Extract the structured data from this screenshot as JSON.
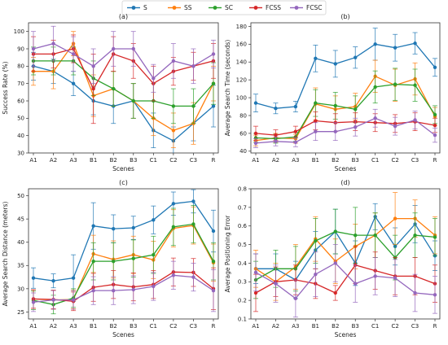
{
  "legend": {
    "placement": "top-center",
    "entries": [
      {
        "name": "S",
        "color": "#1f77b4"
      },
      {
        "name": "SS",
        "color": "#ff7f0e"
      },
      {
        "name": "SC",
        "color": "#2ca02c"
      },
      {
        "name": "FCSS",
        "color": "#d62728"
      },
      {
        "name": "FCSC",
        "color": "#9467bd"
      }
    ]
  },
  "chart_data": [
    {
      "id": "a",
      "title": "(a)",
      "type": "line",
      "xlabel": "Scenes",
      "ylabel": "Success Rate (%)",
      "categories": [
        "A1",
        "A2",
        "A3",
        "B1",
        "B2",
        "B3",
        "C1",
        "C2",
        "C3",
        "R"
      ],
      "ylim": [
        30,
        105
      ],
      "yticks": [
        30,
        40,
        50,
        60,
        70,
        80,
        90,
        100
      ],
      "grid": false,
      "series": [
        {
          "name": "S",
          "color": "#1f77b4",
          "values": [
            80,
            77,
            70,
            60,
            57,
            60,
            43,
            37,
            47,
            57
          ],
          "err": [
            8,
            7,
            7,
            8,
            10,
            10,
            10,
            8,
            10,
            12
          ]
        },
        {
          "name": "SS",
          "color": "#ff7f0e",
          "values": [
            77,
            77,
            93,
            63,
            67,
            60,
            50,
            43,
            47,
            70
          ],
          "err": [
            8,
            10,
            7,
            12,
            10,
            10,
            10,
            10,
            12,
            10
          ]
        },
        {
          "name": "SC",
          "color": "#2ca02c",
          "values": [
            83,
            83,
            83,
            73,
            67,
            60,
            60,
            57,
            57,
            70
          ],
          "err": [
            8,
            8,
            8,
            10,
            10,
            10,
            10,
            10,
            10,
            12
          ]
        },
        {
          "name": "FCSS",
          "color": "#d62728",
          "values": [
            87,
            87,
            90,
            67,
            87,
            83,
            70,
            77,
            80,
            83
          ],
          "err": [
            10,
            8,
            8,
            20,
            10,
            10,
            10,
            8,
            8,
            10
          ]
        },
        {
          "name": "FCSC",
          "color": "#9467bd",
          "values": [
            90,
            93,
            87,
            80,
            90,
            90,
            73,
            83,
            80,
            87
          ],
          "err": [
            10,
            10,
            10,
            10,
            10,
            10,
            8,
            10,
            10,
            8
          ]
        }
      ]
    },
    {
      "id": "b",
      "title": "(b)",
      "type": "line",
      "xlabel": "Scenes",
      "ylabel": "Average Search Time (seconds)",
      "categories": [
        "A1",
        "A2",
        "A3",
        "B1",
        "B2",
        "B3",
        "C1",
        "C2",
        "C3",
        "R"
      ],
      "ylim": [
        38,
        184
      ],
      "yticks": [
        40,
        60,
        80,
        100,
        120,
        140,
        160,
        180
      ],
      "grid": false,
      "series": [
        {
          "name": "S",
          "color": "#1f77b4",
          "values": [
            94,
            88,
            90,
            144,
            138,
            145,
            160,
            156,
            161,
            134
          ],
          "err": [
            10,
            6,
            6,
            15,
            15,
            12,
            18,
            15,
            12,
            10
          ]
        },
        {
          "name": "SS",
          "color": "#ff7f0e",
          "values": [
            52,
            55,
            54,
            93,
            87,
            90,
            124,
            114,
            121,
            79
          ],
          "err": [
            6,
            5,
            5,
            18,
            15,
            15,
            18,
            18,
            18,
            10
          ]
        },
        {
          "name": "SC",
          "color": "#2ca02c",
          "values": [
            55,
            54,
            56,
            94,
            91,
            87,
            112,
            115,
            114,
            81
          ],
          "err": [
            5,
            5,
            5,
            15,
            15,
            15,
            18,
            18,
            18,
            10
          ]
        },
        {
          "name": "FCSS",
          "color": "#d62728",
          "values": [
            60,
            58,
            62,
            74,
            72,
            73,
            72,
            71,
            73,
            69
          ],
          "err": [
            8,
            6,
            6,
            10,
            10,
            10,
            10,
            10,
            10,
            8
          ]
        },
        {
          "name": "FCSC",
          "color": "#9467bd",
          "values": [
            49,
            51,
            50,
            62,
            62,
            67,
            77,
            68,
            75,
            58
          ],
          "err": [
            5,
            5,
            5,
            10,
            10,
            10,
            10,
            10,
            10,
            8
          ]
        }
      ]
    },
    {
      "id": "c",
      "title": "(c)",
      "type": "line",
      "xlabel": "Scenes",
      "ylabel": "Average Search Distance (meters)",
      "categories": [
        "A1",
        "A2",
        "A3",
        "B1",
        "B2",
        "B3",
        "C1",
        "C2",
        "C3",
        "R"
      ],
      "ylim": [
        23.5,
        51.5
      ],
      "yticks": [
        25,
        30,
        35,
        40,
        45,
        50
      ],
      "grid": false,
      "series": [
        {
          "name": "S",
          "color": "#1f77b4",
          "values": [
            32.3,
            31.7,
            32.3,
            43.5,
            42.9,
            43.1,
            44.8,
            48.3,
            48.8,
            42.4
          ],
          "err": [
            2.2,
            1.5,
            5,
            5,
            3,
            2.5,
            3,
            2.5,
            2.5,
            4.5
          ]
        },
        {
          "name": "SS",
          "color": "#ff7f0e",
          "values": [
            27.8,
            27.6,
            27.7,
            37.5,
            36.3,
            37.3,
            36.2,
            43.0,
            43.6,
            35.6
          ],
          "err": [
            2,
            2,
            2,
            4,
            4,
            4,
            4,
            4,
            4,
            4
          ]
        },
        {
          "name": "SC",
          "color": "#2ca02c",
          "values": [
            27.5,
            26.6,
            28.0,
            35.9,
            35.9,
            36.5,
            37.3,
            43.3,
            43.9,
            35.9
          ],
          "err": [
            2,
            2,
            2,
            4,
            4,
            4,
            4,
            4,
            4,
            4
          ]
        },
        {
          "name": "FCSS",
          "color": "#d62728",
          "values": [
            27.8,
            27.7,
            27.3,
            30.3,
            30.9,
            30.4,
            30.9,
            33.6,
            33.5,
            30.0
          ],
          "err": [
            2,
            2,
            2,
            3,
            3,
            3,
            3,
            3,
            3,
            4.5
          ]
        },
        {
          "name": "FCSC",
          "color": "#9467bd",
          "values": [
            27.1,
            27.6,
            27.6,
            29.6,
            29.6,
            29.8,
            30.5,
            32.9,
            32.5,
            29.6
          ],
          "err": [
            2,
            2,
            2,
            3,
            3,
            3,
            3,
            3,
            3,
            4.5
          ]
        }
      ]
    },
    {
      "id": "d",
      "title": "(d)",
      "type": "line",
      "xlabel": "Scenes",
      "ylabel": "Average Positioning Error",
      "categories": [
        "A1",
        "A2",
        "A3",
        "B1",
        "B2",
        "B3",
        "C1",
        "C2",
        "C3",
        "R"
      ],
      "ylim": [
        0.1,
        0.8
      ],
      "yticks": [
        0.1,
        0.2,
        0.3,
        0.4,
        0.5,
        0.6,
        0.7,
        0.8
      ],
      "grid": false,
      "series": [
        {
          "name": "S",
          "color": "#1f77b4",
          "values": [
            0.37,
            0.37,
            0.31,
            0.47,
            0.57,
            0.4,
            0.65,
            0.49,
            0.61,
            0.44
          ],
          "err": [
            0.08,
            0.08,
            0.1,
            0.1,
            0.12,
            0.12,
            0.07,
            0.1,
            0.1,
            0.08
          ]
        },
        {
          "name": "SS",
          "color": "#ff7f0e",
          "values": [
            0.37,
            0.3,
            0.38,
            0.53,
            0.41,
            0.49,
            0.55,
            0.64,
            0.64,
            0.55
          ],
          "err": [
            0.1,
            0.1,
            0.12,
            0.12,
            0.12,
            0.12,
            0.12,
            0.14,
            0.1,
            0.1
          ]
        },
        {
          "name": "SC",
          "color": "#2ca02c",
          "values": [
            0.31,
            0.37,
            0.37,
            0.52,
            0.57,
            0.55,
            0.55,
            0.43,
            0.55,
            0.54
          ],
          "err": [
            0.1,
            0.1,
            0.12,
            0.12,
            0.12,
            0.15,
            0.12,
            0.12,
            0.12,
            0.1
          ]
        },
        {
          "name": "FCSS",
          "color": "#d62728",
          "values": [
            0.24,
            0.3,
            0.31,
            0.29,
            0.24,
            0.39,
            0.36,
            0.33,
            0.33,
            0.29
          ],
          "err": [
            0.1,
            0.08,
            0.08,
            0.08,
            0.04,
            0.1,
            0.1,
            0.1,
            0.1,
            0.1
          ]
        },
        {
          "name": "FCSC",
          "color": "#9467bd",
          "values": [
            0.35,
            0.29,
            0.21,
            0.34,
            0.4,
            0.29,
            0.33,
            0.32,
            0.24,
            0.23
          ],
          "err": [
            0.1,
            0.1,
            0.1,
            0.12,
            0.1,
            0.1,
            0.1,
            0.1,
            0.1,
            0.1
          ]
        }
      ]
    }
  ]
}
